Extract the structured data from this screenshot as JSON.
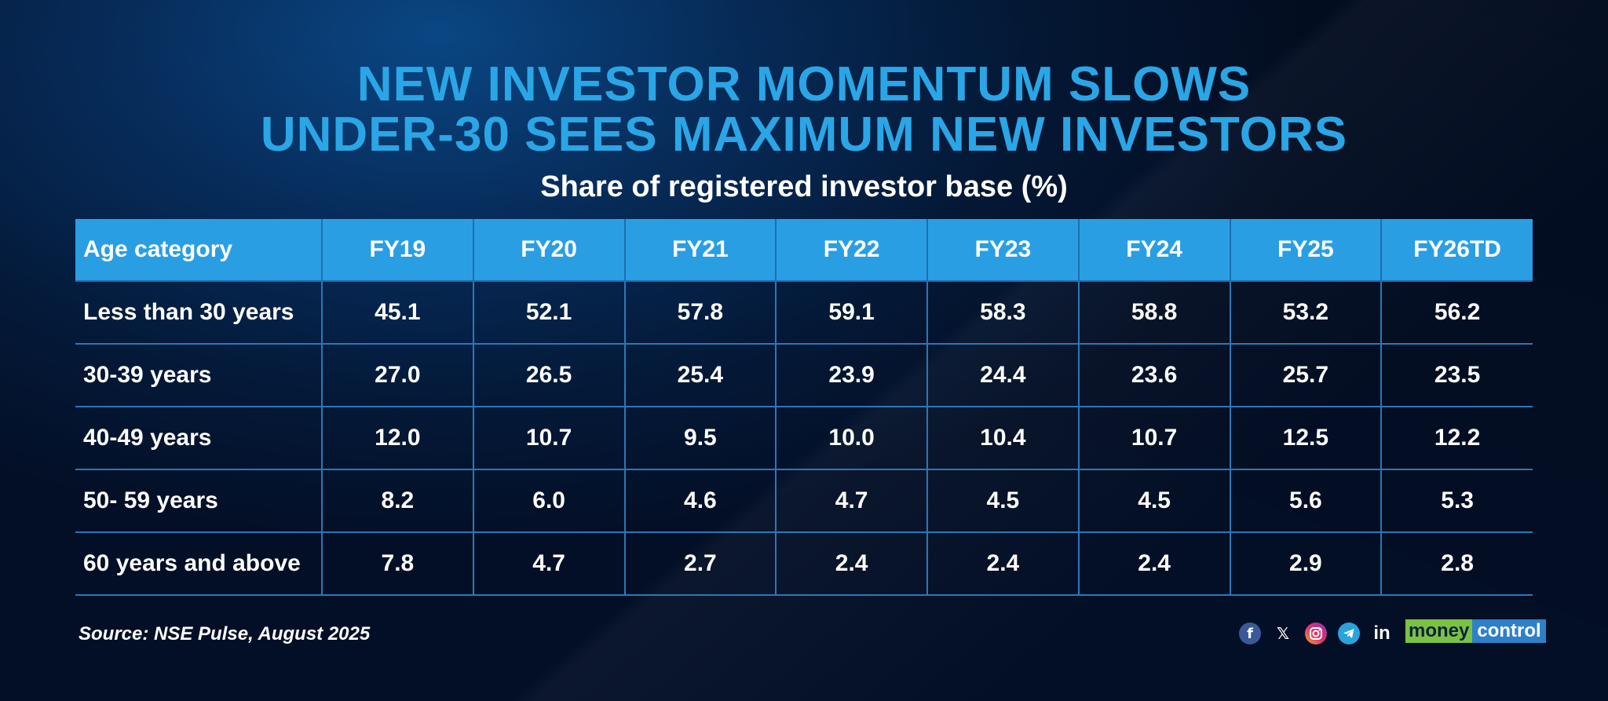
{
  "title_line1": "NEW INVESTOR MOMENTUM SLOWS",
  "title_line2": "UNDER-30 SEES MAXIMUM NEW INVESTORS",
  "subtitle": "Share of registered investor base (%)",
  "source": "Source: NSE Pulse, August 2025",
  "brand": {
    "part1": "money",
    "part2": "control"
  },
  "colors": {
    "title": "#2aa6e6",
    "header_bg": "#2a9ee3",
    "grid_line": "#2a78b8",
    "logo_green": "#7cc242",
    "logo_blue": "#2e80c9"
  },
  "social_icons": [
    "facebook-icon",
    "x-icon",
    "instagram-icon",
    "telegram-icon",
    "linkedin-icon"
  ],
  "chart_data": {
    "type": "table",
    "title": "Share of registered investor base (%)",
    "row_header_label": "Age category",
    "columns": [
      "FY19",
      "FY20",
      "FY21",
      "FY22",
      "FY23",
      "FY24",
      "FY25",
      "FY26TD"
    ],
    "rows": [
      {
        "label": "Less than 30 years",
        "values": [
          "45.1",
          "52.1",
          "57.8",
          "59.1",
          "58.3",
          "58.8",
          "53.2",
          "56.2"
        ]
      },
      {
        "label": "30-39 years",
        "values": [
          "27.0",
          "26.5",
          "25.4",
          "23.9",
          "24.4",
          "23.6",
          "25.7",
          "23.5"
        ]
      },
      {
        "label": "40-49 years",
        "values": [
          "12.0",
          "10.7",
          "9.5",
          "10.0",
          "10.4",
          "10.7",
          "12.5",
          "12.2"
        ]
      },
      {
        "label": "50- 59 years",
        "values": [
          "8.2",
          "6.0",
          "4.6",
          "4.7",
          "4.5",
          "4.5",
          "5.6",
          "5.3"
        ]
      },
      {
        "label": "60 years and above",
        "values": [
          "7.8",
          "4.7",
          "2.7",
          "2.4",
          "2.4",
          "2.4",
          "2.9",
          "2.8"
        ]
      }
    ]
  }
}
